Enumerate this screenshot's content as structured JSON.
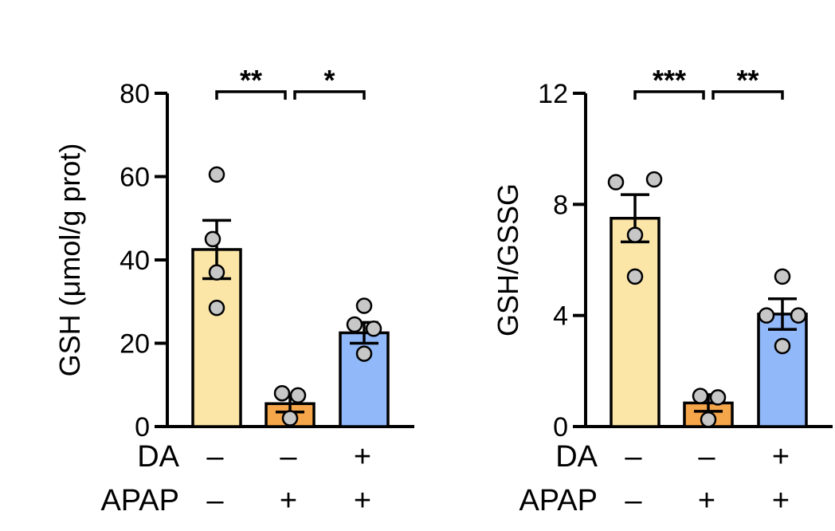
{
  "chart_data": [
    {
      "type": "bar",
      "ylabel": "GSH (μmol/g prot)",
      "ylim": [
        0,
        80
      ],
      "yticks": [
        0,
        20,
        40,
        60,
        80
      ],
      "ytick_labels": [
        "0",
        "20",
        "40",
        "60",
        "80"
      ],
      "groups": [
        {
          "mean": 42.5,
          "sem": 7.0,
          "points": [
            60.5,
            45,
            37,
            28.5
          ],
          "color": "#fbe6a8"
        },
        {
          "mean": 5.5,
          "sem": 2.0,
          "points": [
            8,
            7.5,
            2
          ],
          "color": "#f5a54a"
        },
        {
          "mean": 22.5,
          "sem": 2.5,
          "points": [
            29,
            24.5,
            23.5,
            17.5
          ],
          "color": "#91b8f8"
        }
      ],
      "significance": [
        {
          "from": 0,
          "to": 1,
          "label": "**"
        },
        {
          "from": 1,
          "to": 2,
          "label": "*"
        }
      ],
      "conditions": {
        "rows": [
          {
            "label": "DA",
            "values": [
              "–",
              "–",
              "+"
            ]
          },
          {
            "label": "APAP",
            "values": [
              "–",
              "+",
              "+"
            ]
          }
        ]
      }
    },
    {
      "type": "bar",
      "ylabel": "GSH/GSSG",
      "ylim": [
        0,
        12
      ],
      "yticks": [
        0,
        4,
        8,
        12
      ],
      "ytick_labels": [
        "0",
        "4",
        "8",
        "12"
      ],
      "groups": [
        {
          "mean": 7.5,
          "sem": 0.85,
          "points": [
            8.8,
            8.9,
            6.9,
            5.4
          ],
          "color": "#fbe6a8"
        },
        {
          "mean": 0.85,
          "sem": 0.3,
          "points": [
            1.1,
            1.05,
            0.25
          ],
          "color": "#f5a54a"
        },
        {
          "mean": 4.05,
          "sem": 0.55,
          "points": [
            5.4,
            4.0,
            4.0,
            2.9
          ],
          "color": "#91b8f8"
        }
      ],
      "significance": [
        {
          "from": 0,
          "to": 1,
          "label": "***"
        },
        {
          "from": 1,
          "to": 2,
          "label": "**"
        }
      ],
      "conditions": {
        "rows": [
          {
            "label": "DA",
            "values": [
              "–",
              "–",
              "+"
            ]
          },
          {
            "label": "APAP",
            "values": [
              "–",
              "+",
              "+"
            ]
          }
        ]
      }
    }
  ]
}
